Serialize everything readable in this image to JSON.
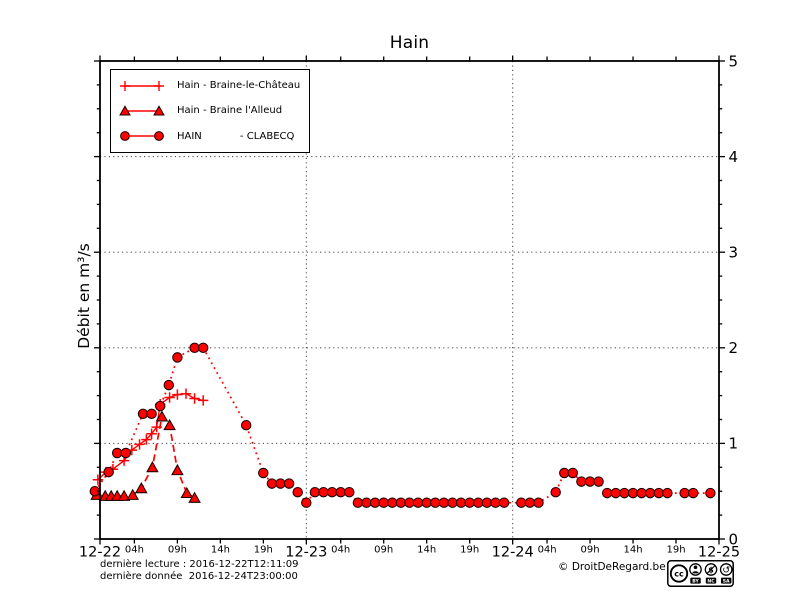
{
  "title": "Hain",
  "ylabel": "Débit en m³/s",
  "footer": {
    "line1": "dernière lecture : 2016-12-22T12:11:09",
    "line2": "dernière donnée  2016-12-24T23:00:00",
    "copyright": "© DroitDeRegard.be"
  },
  "badge": {
    "cc": "cc",
    "nc_icon": "$",
    "sa_icon": "↺",
    "labels": [
      "BY",
      "NC",
      "SA"
    ]
  },
  "colors": {
    "series": "#ff0000",
    "marker_edge": "#1a0000",
    "grid": "#555555",
    "axis": "#000000",
    "background": "#ffffff"
  },
  "chart_data": {
    "type": "line",
    "title": "Hain",
    "xlabel": "",
    "ylabel": "Débit en m³/s",
    "x_unit": "hours since 2016-12-22 00:00",
    "xlim": [
      0,
      72
    ],
    "ylim": [
      0,
      5
    ],
    "grid": {
      "horizontal_at": [
        1,
        2,
        3,
        4
      ],
      "vertical_at": [
        24,
        48
      ],
      "style": "dotted"
    },
    "legend_position": "upper-left",
    "yticks_major": [
      0,
      1,
      2,
      3,
      4,
      5
    ],
    "ytick_minor_step": 0.25,
    "xticks_days": [
      {
        "x": 0,
        "label": "12-22"
      },
      {
        "x": 24,
        "label": "12-23"
      },
      {
        "x": 48,
        "label": "12-24"
      },
      {
        "x": 72,
        "label": "12-25"
      }
    ],
    "xticks_hours": [
      {
        "x": 4,
        "label": "04h"
      },
      {
        "x": 9,
        "label": "09h"
      },
      {
        "x": 14,
        "label": "14h"
      },
      {
        "x": 19,
        "label": "19h"
      },
      {
        "x": 28,
        "label": "04h"
      },
      {
        "x": 33,
        "label": "09h"
      },
      {
        "x": 38,
        "label": "14h"
      },
      {
        "x": 43,
        "label": "19h"
      },
      {
        "x": 52,
        "label": "04h"
      },
      {
        "x": 57,
        "label": "09h"
      },
      {
        "x": 62,
        "label": "14h"
      },
      {
        "x": 67,
        "label": "19h"
      }
    ],
    "series": [
      {
        "id": "braine-le-chateau",
        "name": "Hain - Braine-le-Château",
        "marker": "plus",
        "line_style": "solid",
        "color": "#ff0000",
        "points": [
          [
            -0.25,
            0.62
          ],
          [
            0.7,
            0.7
          ],
          [
            1.5,
            0.73
          ],
          [
            2.8,
            0.82
          ],
          [
            3.7,
            0.93
          ],
          [
            4.6,
            0.99
          ],
          [
            5.4,
            1.04
          ],
          [
            6.0,
            1.1
          ],
          [
            6.6,
            1.17
          ],
          [
            7.0,
            1.41
          ],
          [
            8.1,
            1.48
          ],
          [
            9.0,
            1.51
          ],
          [
            10.0,
            1.52
          ],
          [
            11.0,
            1.47
          ],
          [
            12.0,
            1.45
          ]
        ]
      },
      {
        "id": "braine-l-alleud",
        "name": "Hain - Braine l'Alleud",
        "marker": "triangle",
        "line_style": "dashed",
        "color": "#ff0000",
        "points": [
          [
            -0.4,
            0.46
          ],
          [
            0.6,
            0.45
          ],
          [
            1.3,
            0.45
          ],
          [
            2.0,
            0.45
          ],
          [
            2.8,
            0.45
          ],
          [
            3.8,
            0.46
          ],
          [
            4.8,
            0.53
          ],
          [
            6.1,
            0.75
          ],
          [
            7.2,
            1.28
          ],
          [
            8.1,
            1.19
          ],
          [
            9.0,
            0.72
          ],
          [
            10.1,
            0.48
          ],
          [
            11.0,
            0.43
          ]
        ]
      },
      {
        "id": "clabecq",
        "name": "HAIN            - CLABECQ",
        "marker": "circle",
        "line_style": "dotted",
        "color": "#ff0000",
        "points": [
          [
            -0.6,
            0.5
          ],
          [
            1,
            0.7
          ],
          [
            2,
            0.9
          ],
          [
            3,
            0.9
          ],
          [
            5,
            1.31
          ],
          [
            6,
            1.31
          ],
          [
            7,
            1.39
          ],
          [
            8,
            1.61
          ],
          [
            9,
            1.9
          ],
          [
            11,
            2.0
          ],
          [
            12,
            2.0
          ],
          [
            17,
            1.19
          ],
          [
            19,
            0.69
          ],
          [
            20,
            0.58
          ],
          [
            21,
            0.58
          ],
          [
            22,
            0.58
          ],
          [
            23,
            0.49
          ],
          [
            24,
            0.38
          ],
          [
            25,
            0.49
          ],
          [
            26,
            0.49
          ],
          [
            27,
            0.49
          ],
          [
            28,
            0.49
          ],
          [
            29,
            0.49
          ],
          [
            30,
            0.38
          ],
          [
            31,
            0.38
          ],
          [
            32,
            0.38
          ],
          [
            33,
            0.38
          ],
          [
            34,
            0.38
          ],
          [
            35,
            0.38
          ],
          [
            36,
            0.38
          ],
          [
            37,
            0.38
          ],
          [
            38,
            0.38
          ],
          [
            39,
            0.38
          ],
          [
            40,
            0.38
          ],
          [
            41,
            0.38
          ],
          [
            42,
            0.38
          ],
          [
            43,
            0.38
          ],
          [
            44,
            0.38
          ],
          [
            45,
            0.38
          ],
          [
            46,
            0.38
          ],
          [
            47,
            0.38
          ],
          [
            49,
            0.38
          ],
          [
            50,
            0.38
          ],
          [
            51,
            0.38
          ],
          [
            53,
            0.49
          ],
          [
            54,
            0.69
          ],
          [
            55,
            0.69
          ],
          [
            56,
            0.6
          ],
          [
            57,
            0.6
          ],
          [
            58,
            0.6
          ],
          [
            59,
            0.48
          ],
          [
            60,
            0.48
          ],
          [
            61,
            0.48
          ],
          [
            62,
            0.48
          ],
          [
            63,
            0.48
          ],
          [
            64,
            0.48
          ],
          [
            65,
            0.48
          ],
          [
            66,
            0.48
          ],
          [
            68,
            0.48
          ],
          [
            69,
            0.48
          ],
          [
            71,
            0.48
          ]
        ]
      }
    ]
  }
}
